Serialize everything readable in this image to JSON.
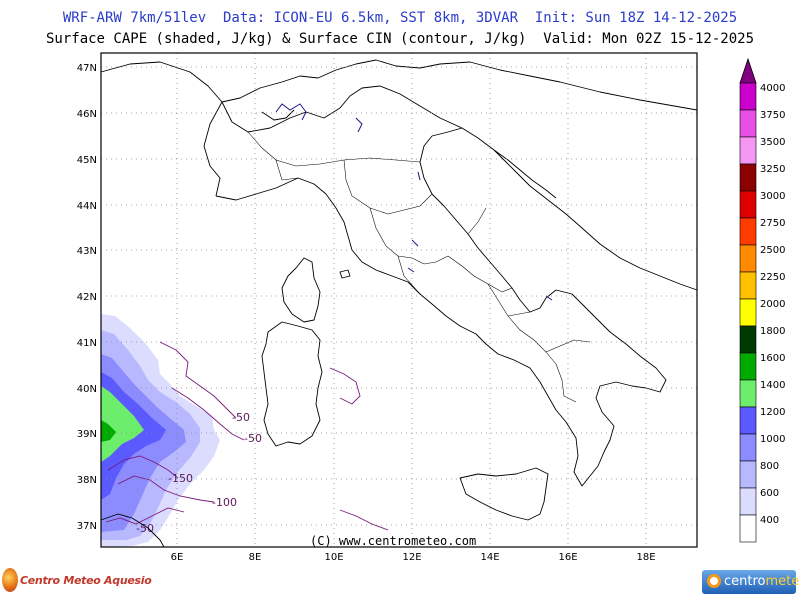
{
  "header": {
    "line1": "WRF-ARW 7km/51lev  Data: ICON-EU 6.5km, SST 8km, 3DVAR  Init: Sun 18Z 14-12-2025",
    "line2": "Surface CAPE (shaded, J/kg) & Surface CIN (contour, J/kg)  Valid: Mon 02Z 15-12-2025"
  },
  "map": {
    "lat_labels": [
      "47N",
      "46N",
      "45N",
      "44N",
      "43N",
      "42N",
      "41N",
      "40N",
      "39N",
      "38N",
      "37N"
    ],
    "lon_labels": [
      "6E",
      "8E",
      "10E",
      "12E",
      "14E",
      "16E",
      "18E"
    ],
    "credit": "(C) www.centrometeo.com",
    "cin_contour_labels": [
      "-50",
      "-50",
      "-150",
      "-100",
      "-50"
    ]
  },
  "colorbar": {
    "labels": [
      "4000",
      "3750",
      "3500",
      "3250",
      "3000",
      "2750",
      "2500",
      "2250",
      "2000",
      "1800",
      "1600",
      "1400",
      "1200",
      "1000",
      "800",
      "600",
      "400"
    ],
    "colors": [
      "#cc00cc",
      "#e64fe6",
      "#f596f5",
      "#8b0000",
      "#dd0000",
      "#ff3c00",
      "#ff8c00",
      "#ffc000",
      "#ffff00",
      "#003a00",
      "#00aa00",
      "#6cee6c",
      "#5a5aff",
      "#8c8cff",
      "#b8b8ff",
      "#dcdcff",
      "#ffffff"
    ],
    "top_color": "#800080"
  },
  "logos": {
    "left": "Centro Meteo Aquesio",
    "right_a": "centro",
    "right_b": "meteo"
  }
}
